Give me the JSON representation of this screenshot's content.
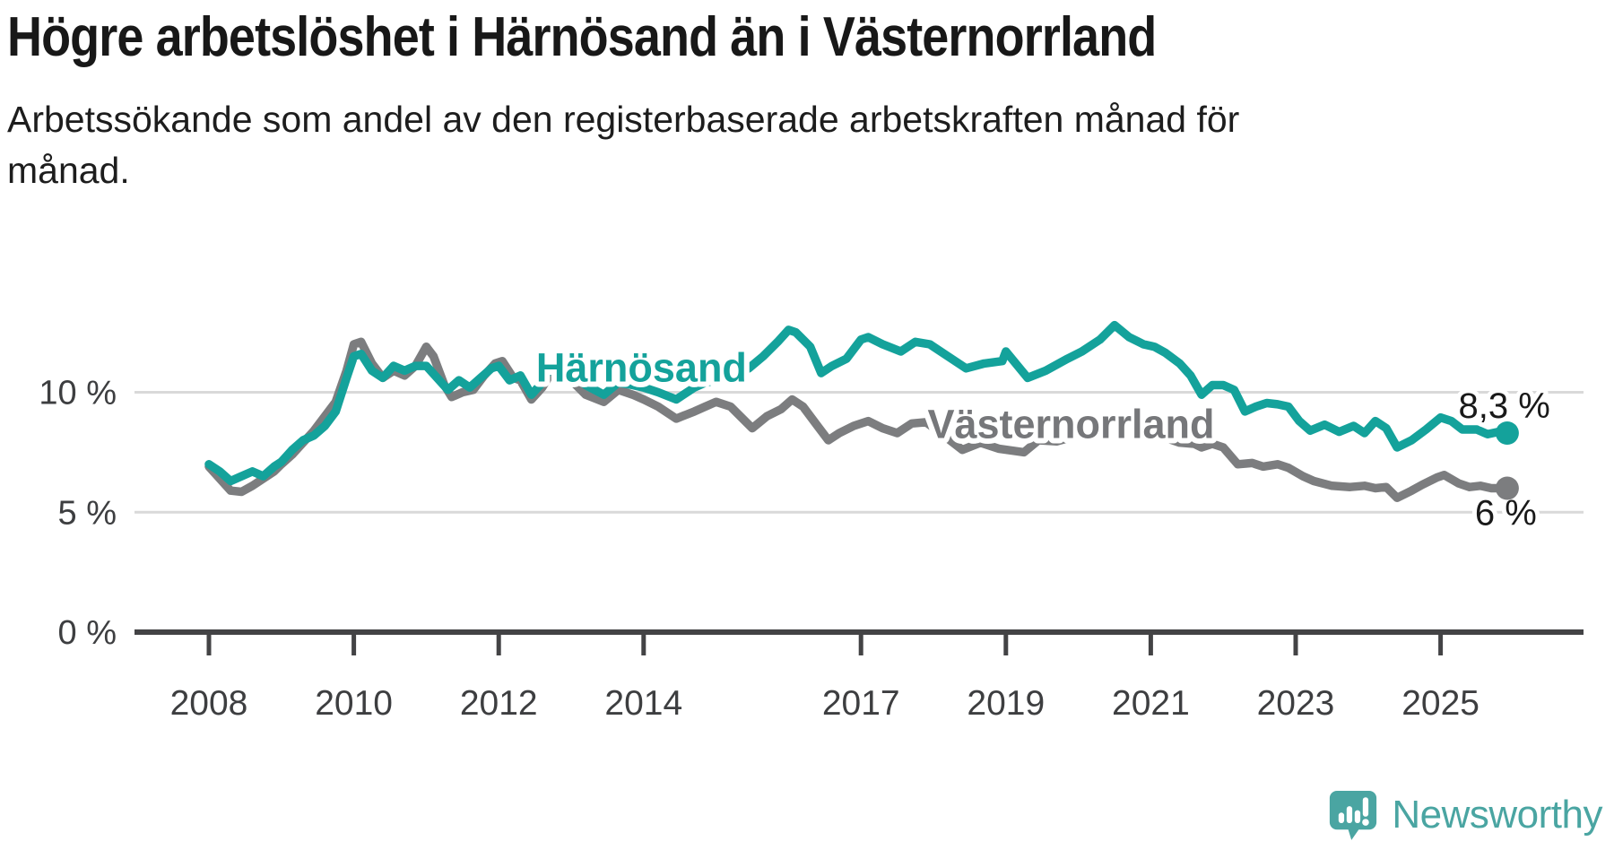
{
  "header": {
    "title": "Högre arbetslöshet i Härnösand än i Västernorrland",
    "subtitle": "Arbetssökande som andel av den registerbaserade arbetskraften månad för månad.",
    "subtitle_lines": [
      "Arbetssökande som andel av den registerbaserade arbetskraften månad för",
      "månad."
    ]
  },
  "footer": {
    "brand": "Newsworthy"
  },
  "colors": {
    "harnosand": "#14a29b",
    "vasternorrland": "#7c7d7f",
    "vasternorrland_label": "#76777a",
    "grid": "#d9d9d9",
    "axis": "#434345",
    "tick_text": "#3d3e40",
    "end_label_text": "#191919",
    "halo": "#ffffff",
    "logo_teal": "#4aa5a2"
  },
  "chart_data": {
    "type": "line",
    "title": "Högre arbetslöshet i Härnösand än i Västernorrland",
    "xlabel": "",
    "ylabel": "Arbetssökande som andel av den registerbaserade arbetskraften",
    "xlim": [
      2007.0,
      2027.0
    ],
    "ylim": [
      0,
      14
    ],
    "grid": "horizontal",
    "y_gridlines": [
      5,
      10
    ],
    "x_ticks": [
      {
        "v": 2008,
        "label": "2008"
      },
      {
        "v": 2010,
        "label": "2010"
      },
      {
        "v": 2012,
        "label": "2012"
      },
      {
        "v": 2014,
        "label": "2014"
      },
      {
        "v": 2017,
        "label": "2017"
      },
      {
        "v": 2019,
        "label": "2019"
      },
      {
        "v": 2021,
        "label": "2021"
      },
      {
        "v": 2023,
        "label": "2023"
      },
      {
        "v": 2025,
        "label": "2025"
      }
    ],
    "y_ticks": [
      {
        "v": 0,
        "label": "0 %"
      },
      {
        "v": 5,
        "label": "5 %"
      },
      {
        "v": 10,
        "label": "10 %"
      }
    ],
    "series": [
      {
        "name": "Västernorrland",
        "color": "#7c7d7f",
        "label_color": "#76777a",
        "name_label": {
          "x": 2019.9,
          "y": 8.7
        },
        "end_label": {
          "text": "6 %",
          "x": 2025.9,
          "y": 5.0
        },
        "end_dot": true,
        "points": [
          [
            2008.0,
            6.9
          ],
          [
            2008.15,
            6.4
          ],
          [
            2008.3,
            5.9
          ],
          [
            2008.45,
            5.85
          ],
          [
            2008.6,
            6.1
          ],
          [
            2008.75,
            6.4
          ],
          [
            2008.9,
            6.7
          ],
          [
            2009.0,
            7.0
          ],
          [
            2009.15,
            7.4
          ],
          [
            2009.3,
            7.9
          ],
          [
            2009.45,
            8.4
          ],
          [
            2009.6,
            9.0
          ],
          [
            2009.75,
            9.6
          ],
          [
            2009.9,
            10.9
          ],
          [
            2010.0,
            12.0
          ],
          [
            2010.1,
            12.1
          ],
          [
            2010.25,
            11.2
          ],
          [
            2010.4,
            10.6
          ],
          [
            2010.55,
            10.9
          ],
          [
            2010.7,
            10.7
          ],
          [
            2010.85,
            11.1
          ],
          [
            2011.0,
            11.9
          ],
          [
            2011.1,
            11.5
          ],
          [
            2011.25,
            10.3
          ],
          [
            2011.35,
            9.8
          ],
          [
            2011.5,
            10.0
          ],
          [
            2011.65,
            10.1
          ],
          [
            2011.8,
            10.7
          ],
          [
            2011.95,
            11.2
          ],
          [
            2012.05,
            11.3
          ],
          [
            2012.2,
            10.6
          ],
          [
            2012.3,
            10.5
          ],
          [
            2012.45,
            9.7
          ],
          [
            2012.6,
            10.2
          ],
          [
            2012.7,
            10.7
          ],
          [
            2012.85,
            10.6
          ],
          [
            2013.0,
            10.5
          ],
          [
            2013.2,
            9.9
          ],
          [
            2013.45,
            9.6
          ],
          [
            2013.65,
            10.1
          ],
          [
            2013.85,
            9.9
          ],
          [
            2014.0,
            9.7
          ],
          [
            2014.2,
            9.4
          ],
          [
            2014.45,
            8.9
          ],
          [
            2014.7,
            9.2
          ],
          [
            2014.85,
            9.4
          ],
          [
            2015.0,
            9.6
          ],
          [
            2015.2,
            9.4
          ],
          [
            2015.5,
            8.5
          ],
          [
            2015.7,
            9.0
          ],
          [
            2015.9,
            9.3
          ],
          [
            2016.05,
            9.7
          ],
          [
            2016.2,
            9.4
          ],
          [
            2016.4,
            8.6
          ],
          [
            2016.55,
            8.0
          ],
          [
            2016.7,
            8.3
          ],
          [
            2016.9,
            8.6
          ],
          [
            2017.1,
            8.8
          ],
          [
            2017.3,
            8.5
          ],
          [
            2017.5,
            8.3
          ],
          [
            2017.7,
            8.7
          ],
          [
            2017.9,
            8.75
          ],
          [
            2018.1,
            8.3
          ],
          [
            2018.4,
            7.6
          ],
          [
            2018.65,
            7.9
          ],
          [
            2018.9,
            7.65
          ],
          [
            2019.25,
            7.5
          ],
          [
            2019.45,
            8.0
          ],
          [
            2019.7,
            7.95
          ],
          [
            2020.0,
            8.2
          ],
          [
            2020.3,
            8.55
          ],
          [
            2020.55,
            8.7
          ],
          [
            2020.8,
            8.6
          ],
          [
            2021.0,
            8.4
          ],
          [
            2021.2,
            8.1
          ],
          [
            2021.4,
            7.9
          ],
          [
            2021.6,
            7.85
          ],
          [
            2021.7,
            7.7
          ],
          [
            2021.85,
            7.85
          ],
          [
            2022.0,
            7.7
          ],
          [
            2022.2,
            7.0
          ],
          [
            2022.4,
            7.05
          ],
          [
            2022.55,
            6.9
          ],
          [
            2022.75,
            7.0
          ],
          [
            2022.9,
            6.85
          ],
          [
            2023.1,
            6.5
          ],
          [
            2023.25,
            6.3
          ],
          [
            2023.5,
            6.1
          ],
          [
            2023.75,
            6.05
          ],
          [
            2023.95,
            6.1
          ],
          [
            2024.1,
            6.0
          ],
          [
            2024.25,
            6.05
          ],
          [
            2024.4,
            5.6
          ],
          [
            2024.6,
            5.9
          ],
          [
            2024.75,
            6.15
          ],
          [
            2024.95,
            6.45
          ],
          [
            2025.05,
            6.55
          ],
          [
            2025.25,
            6.2
          ],
          [
            2025.4,
            6.05
          ],
          [
            2025.55,
            6.1
          ],
          [
            2025.7,
            6.0
          ],
          [
            2025.92,
            6.0
          ]
        ]
      },
      {
        "name": "Härnösand",
        "color": "#14a29b",
        "label_color": "#14a29b",
        "name_label": {
          "x": 2013.97,
          "y": 11.05
        },
        "end_label": {
          "text": "8,3 %",
          "x": 2025.88,
          "y": 9.45
        },
        "end_dot": true,
        "points": [
          [
            2008.0,
            7.0
          ],
          [
            2008.15,
            6.7
          ],
          [
            2008.3,
            6.3
          ],
          [
            2008.45,
            6.5
          ],
          [
            2008.6,
            6.7
          ],
          [
            2008.75,
            6.5
          ],
          [
            2008.9,
            6.9
          ],
          [
            2009.0,
            7.1
          ],
          [
            2009.15,
            7.6
          ],
          [
            2009.3,
            8.0
          ],
          [
            2009.45,
            8.2
          ],
          [
            2009.6,
            8.6
          ],
          [
            2009.75,
            9.2
          ],
          [
            2009.9,
            10.6
          ],
          [
            2010.0,
            11.5
          ],
          [
            2010.1,
            11.6
          ],
          [
            2010.25,
            10.9
          ],
          [
            2010.4,
            10.6
          ],
          [
            2010.55,
            11.1
          ],
          [
            2010.7,
            10.9
          ],
          [
            2010.85,
            11.1
          ],
          [
            2011.0,
            11.1
          ],
          [
            2011.15,
            10.6
          ],
          [
            2011.3,
            10.1
          ],
          [
            2011.45,
            10.5
          ],
          [
            2011.6,
            10.2
          ],
          [
            2011.75,
            10.6
          ],
          [
            2011.9,
            11.0
          ],
          [
            2012.0,
            11.1
          ],
          [
            2012.15,
            10.5
          ],
          [
            2012.3,
            10.7
          ],
          [
            2012.45,
            9.9
          ],
          [
            2012.6,
            10.4
          ],
          [
            2012.7,
            11.0
          ],
          [
            2012.85,
            10.9
          ],
          [
            2013.0,
            10.8
          ],
          [
            2013.2,
            10.3
          ],
          [
            2013.45,
            9.9
          ],
          [
            2013.65,
            10.4
          ],
          [
            2013.85,
            10.3
          ],
          [
            2014.0,
            10.2
          ],
          [
            2014.2,
            10.0
          ],
          [
            2014.45,
            9.7
          ],
          [
            2014.7,
            10.2
          ],
          [
            2014.85,
            10.4
          ],
          [
            2015.0,
            10.5
          ],
          [
            2015.2,
            10.7
          ],
          [
            2015.45,
            11.0
          ],
          [
            2015.65,
            11.5
          ],
          [
            2015.85,
            12.1
          ],
          [
            2016.0,
            12.6
          ],
          [
            2016.1,
            12.5
          ],
          [
            2016.3,
            11.9
          ],
          [
            2016.45,
            10.8
          ],
          [
            2016.6,
            11.1
          ],
          [
            2016.8,
            11.4
          ],
          [
            2017.0,
            12.2
          ],
          [
            2017.1,
            12.3
          ],
          [
            2017.3,
            12.0
          ],
          [
            2017.55,
            11.7
          ],
          [
            2017.75,
            12.1
          ],
          [
            2017.95,
            12.0
          ],
          [
            2018.2,
            11.5
          ],
          [
            2018.45,
            11.0
          ],
          [
            2018.7,
            11.2
          ],
          [
            2018.95,
            11.3
          ],
          [
            2019.0,
            11.7
          ],
          [
            2019.3,
            10.6
          ],
          [
            2019.55,
            10.9
          ],
          [
            2019.85,
            11.4
          ],
          [
            2020.05,
            11.7
          ],
          [
            2020.3,
            12.2
          ],
          [
            2020.5,
            12.8
          ],
          [
            2020.7,
            12.3
          ],
          [
            2020.9,
            12.0
          ],
          [
            2021.05,
            11.9
          ],
          [
            2021.2,
            11.65
          ],
          [
            2021.4,
            11.2
          ],
          [
            2021.55,
            10.7
          ],
          [
            2021.7,
            9.9
          ],
          [
            2021.85,
            10.3
          ],
          [
            2022.0,
            10.3
          ],
          [
            2022.15,
            10.1
          ],
          [
            2022.3,
            9.2
          ],
          [
            2022.45,
            9.4
          ],
          [
            2022.6,
            9.55
          ],
          [
            2022.75,
            9.5
          ],
          [
            2022.9,
            9.4
          ],
          [
            2023.05,
            8.8
          ],
          [
            2023.2,
            8.4
          ],
          [
            2023.4,
            8.65
          ],
          [
            2023.6,
            8.35
          ],
          [
            2023.8,
            8.6
          ],
          [
            2023.95,
            8.3
          ],
          [
            2024.1,
            8.8
          ],
          [
            2024.25,
            8.5
          ],
          [
            2024.4,
            7.7
          ],
          [
            2024.6,
            8.0
          ],
          [
            2024.8,
            8.45
          ],
          [
            2025.0,
            8.95
          ],
          [
            2025.15,
            8.8
          ],
          [
            2025.3,
            8.45
          ],
          [
            2025.5,
            8.45
          ],
          [
            2025.65,
            8.25
          ],
          [
            2025.8,
            8.35
          ],
          [
            2025.92,
            8.3
          ]
        ]
      }
    ],
    "latest_values": {
      "Härnösand": "8,3 %",
      "Västernorrland": "6 %"
    },
    "legend_position": "inline-labels"
  }
}
